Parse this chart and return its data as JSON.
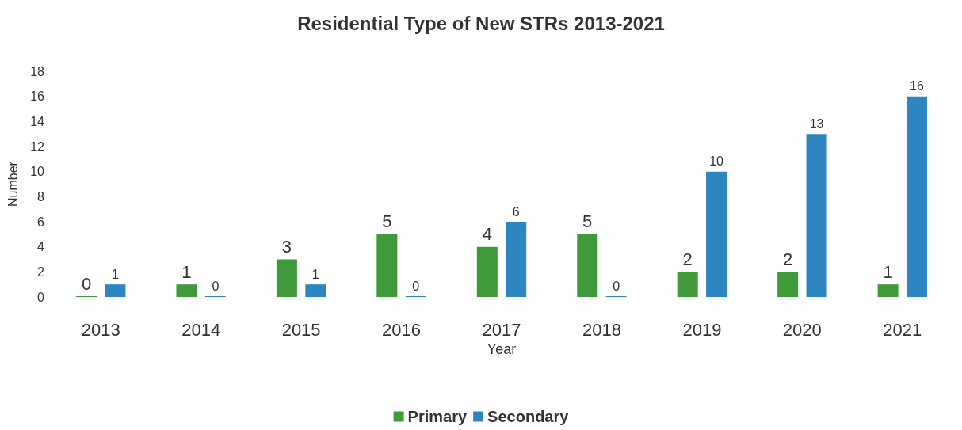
{
  "chart_data": {
    "type": "bar",
    "title": "Residential Type of New STRs 2013-2021",
    "xlabel": "Year",
    "ylabel": "Number",
    "categories": [
      "2013",
      "2014",
      "2015",
      "2016",
      "2017",
      "2018",
      "2019",
      "2020",
      "2021"
    ],
    "series": [
      {
        "name": "Primary",
        "color": "#3f9a3a",
        "values": [
          0,
          1,
          3,
          5,
          4,
          5,
          2,
          2,
          1
        ]
      },
      {
        "name": "Secondary",
        "color": "#2e86c1",
        "values": [
          1,
          0,
          1,
          0,
          6,
          0,
          10,
          13,
          16
        ]
      }
    ],
    "ylim": [
      0,
      18
    ],
    "yticks": [
      0,
      2,
      4,
      6,
      8,
      10,
      12,
      14,
      16,
      18
    ],
    "grid": false,
    "legend": "bottom",
    "data_labels": true
  }
}
